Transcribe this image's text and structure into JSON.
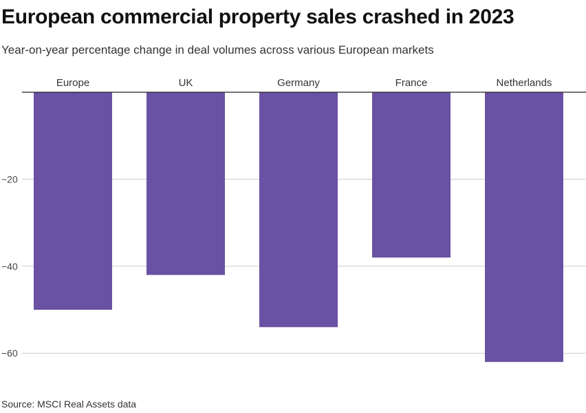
{
  "title": "European commercial property sales crashed in 2023",
  "subtitle": "Year-on-year percentage change in deal volumes across various European markets",
  "source": "Source: MSCI Real Assets data",
  "colors": {
    "bar": "#6a51a3",
    "grid": "#cccccc",
    "zero_line": "#222222"
  },
  "chart_data": {
    "type": "bar",
    "title": "European commercial property sales crashed in 2023",
    "xlabel": "",
    "ylabel": "",
    "categories": [
      "Europe",
      "UK",
      "Germany",
      "France",
      "Netherlands"
    ],
    "values": [
      -50,
      -42,
      -54,
      -38,
      -62
    ],
    "ylim": [
      -62,
      0
    ],
    "yticks": [
      -20,
      -40,
      -60
    ],
    "ytick_labels": [
      "−20",
      "−40",
      "−60"
    ],
    "grid": true,
    "legend": "none"
  }
}
